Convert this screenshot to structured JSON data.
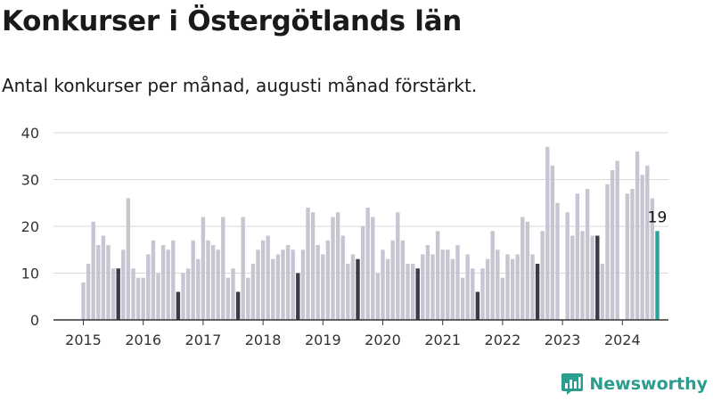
{
  "header": {
    "title": "Konkurser i Östergötlands län",
    "subtitle": "Antal konkurser per månad, augusti månad förstärkt."
  },
  "brand": {
    "name": "Newsworthy",
    "icon": "bar-chart-logo-icon"
  },
  "colors": {
    "bar": "#c6c6d2",
    "august": "#3a3a48",
    "current": "#26a69a",
    "grid": "#d9d9d9",
    "axis": "#333333",
    "brand": "#2a9d8f"
  },
  "chart_data": {
    "type": "bar",
    "ylim": [
      0,
      40
    ],
    "yticks": [
      0,
      10,
      20,
      30,
      40
    ],
    "xtick_labels": [
      "2015",
      "2016",
      "2017",
      "2018",
      "2019",
      "2020",
      "2021",
      "2022",
      "2023",
      "2024"
    ],
    "series": [
      {
        "values": [
          8,
          12,
          21,
          16,
          18,
          16,
          11,
          11,
          15,
          26,
          11,
          9,
          9,
          14,
          17,
          10,
          16,
          15,
          17,
          6,
          10,
          11,
          17,
          13,
          22,
          17,
          16,
          15,
          22,
          9,
          11,
          6,
          22,
          9,
          12,
          15,
          17,
          18,
          13,
          14,
          15,
          16,
          15,
          10,
          15,
          24,
          23,
          16,
          14,
          17,
          22,
          23,
          18,
          12,
          14,
          13,
          20,
          24,
          22,
          10,
          15,
          13,
          17,
          23,
          17,
          12,
          12,
          11,
          14,
          16,
          14,
          19,
          15,
          15,
          13,
          16,
          9,
          14,
          11,
          6,
          11,
          13,
          19,
          15,
          9,
          14,
          13,
          14,
          22,
          21,
          14,
          12,
          19,
          37,
          33,
          25,
          null,
          23,
          18,
          27,
          19,
          28,
          18,
          18,
          12,
          29,
          32,
          34,
          null,
          27,
          28,
          36,
          31,
          33,
          26,
          19
        ]
      }
    ],
    "first_month": "2015-01",
    "highlight_month": 8,
    "annotation": {
      "month": "2024-08",
      "label": "19"
    }
  }
}
